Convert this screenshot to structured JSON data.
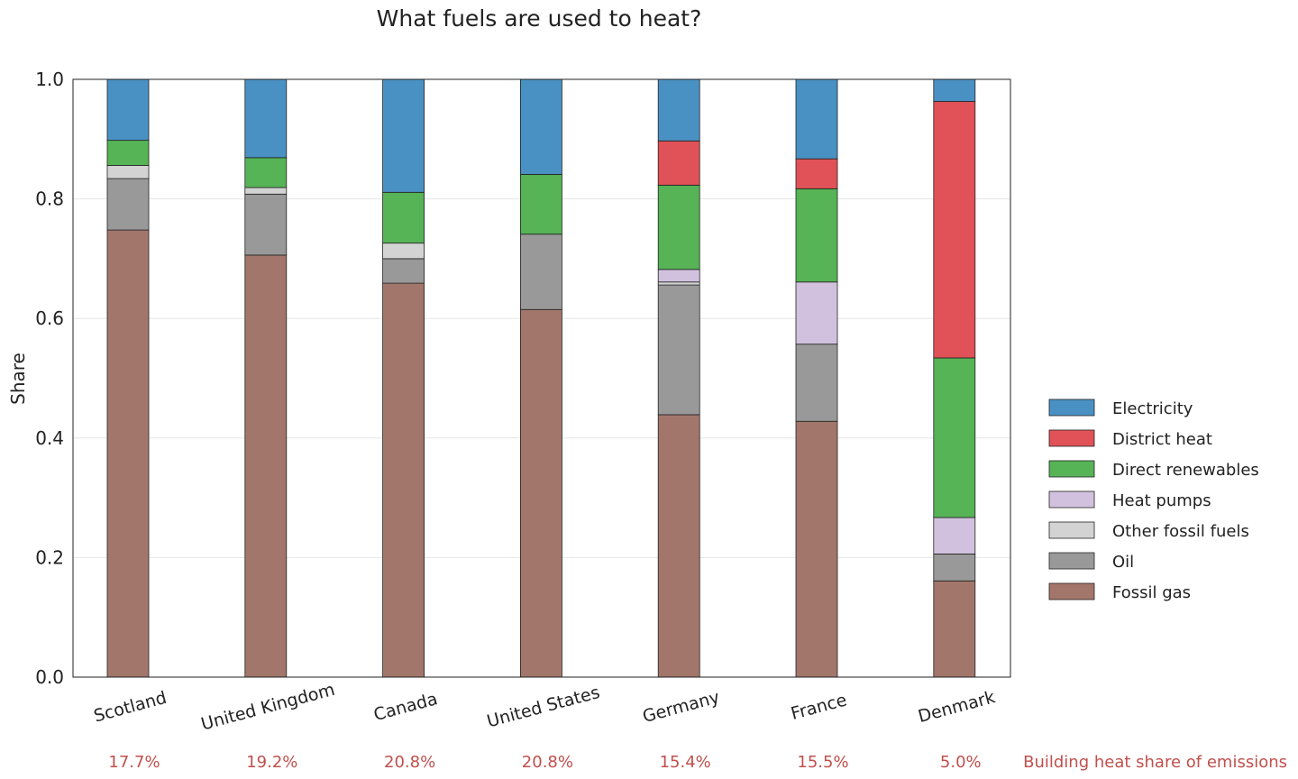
{
  "chart_data": {
    "type": "bar",
    "stacked": true,
    "title": "What fuels are used to heat?",
    "ylabel": "Share",
    "xlabel": "",
    "ylim": [
      0,
      1.0
    ],
    "yticks": [
      "0.0",
      "0.2",
      "0.4",
      "0.6",
      "0.8",
      "1.0"
    ],
    "grid": "horizontal",
    "legend_position": "right",
    "categories": [
      "Scotland",
      "United Kingdom",
      "Canada",
      "United States",
      "Germany",
      "France",
      "Denmark"
    ],
    "series": [
      {
        "name": "Fossil gas",
        "color": "#a3766b",
        "values": [
          0.748,
          0.706,
          0.659,
          0.615,
          0.439,
          0.428,
          0.161
        ]
      },
      {
        "name": "Oil",
        "color": "#999999",
        "values": [
          0.086,
          0.102,
          0.041,
          0.126,
          0.217,
          0.129,
          0.045
        ]
      },
      {
        "name": "Other fossil fuels",
        "color": "#d3d3d3",
        "values": [
          0.022,
          0.011,
          0.026,
          0.0,
          0.005,
          0.0,
          0.0
        ]
      },
      {
        "name": "Heat pumps",
        "color": "#d1c1de",
        "values": [
          0.0,
          0.0,
          0.0,
          0.0,
          0.021,
          0.104,
          0.061
        ]
      },
      {
        "name": "Direct renewables",
        "color": "#56b356",
        "values": [
          0.042,
          0.05,
          0.085,
          0.1,
          0.141,
          0.156,
          0.267
        ]
      },
      {
        "name": "District heat",
        "color": "#e05257",
        "values": [
          0.0,
          0.0,
          0.0,
          0.0,
          0.074,
          0.05,
          0.429
        ]
      },
      {
        "name": "Electricity",
        "color": "#4a91c3",
        "values": [
          0.102,
          0.131,
          0.189,
          0.159,
          0.103,
          0.133,
          0.037
        ]
      }
    ],
    "legend_order": [
      "Electricity",
      "District heat",
      "Direct renewables",
      "Heat pumps",
      "Other fossil fuels",
      "Oil",
      "Fossil gas"
    ],
    "emissions_label": "Building heat share of emissions",
    "emissions_share": [
      "17.7%",
      "19.2%",
      "20.8%",
      "20.8%",
      "15.4%",
      "15.5%",
      "5.0%"
    ]
  }
}
